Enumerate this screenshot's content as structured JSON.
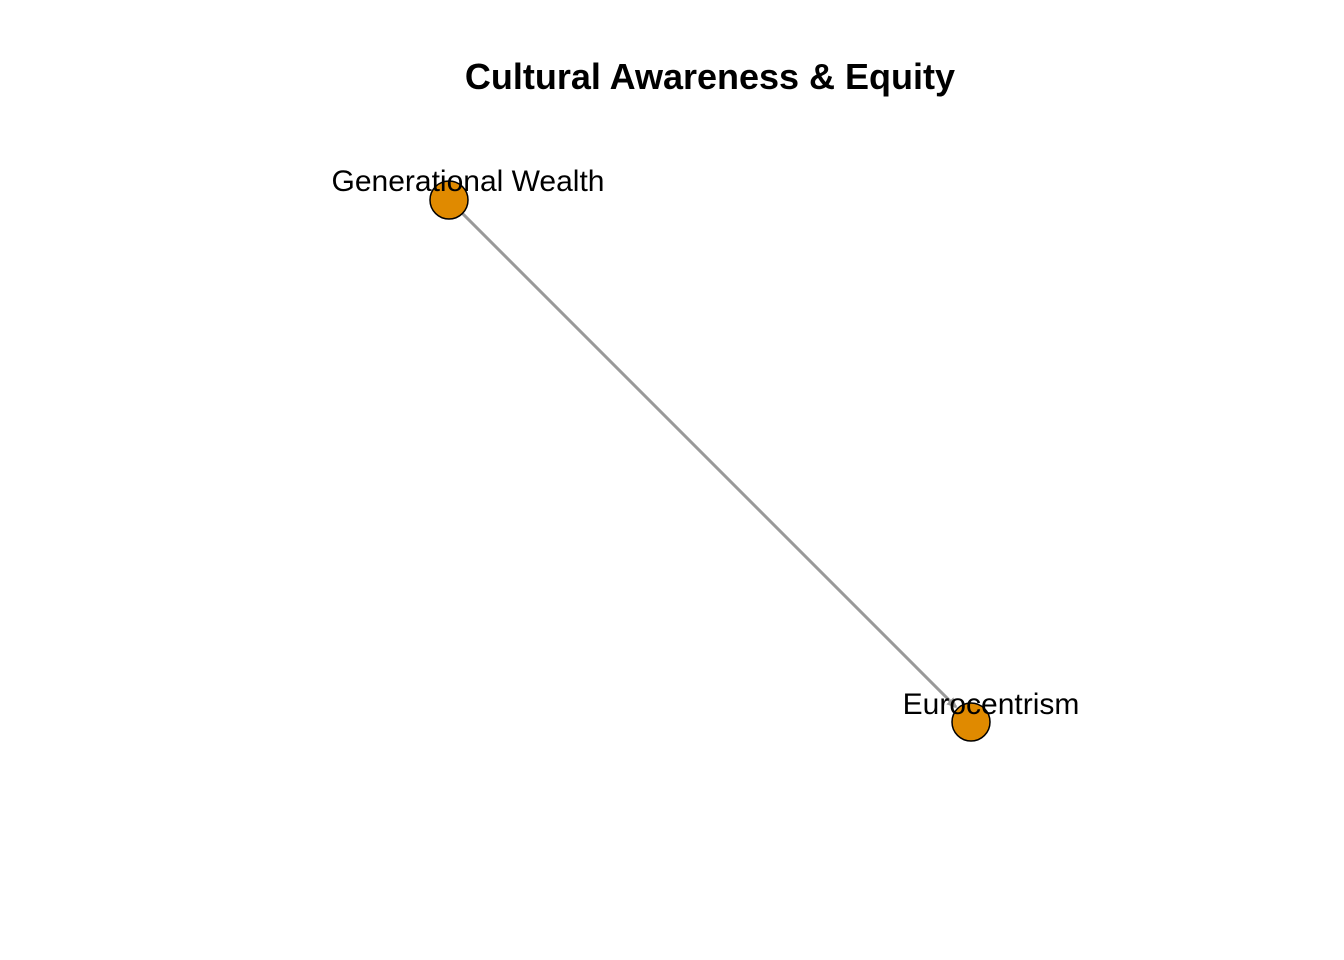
{
  "title": "Cultural Awareness & Equity",
  "colors": {
    "node_fill": "#E08A00",
    "node_stroke": "#000000",
    "edge": "#999999",
    "background": "#ffffff"
  },
  "nodes": [
    {
      "id": "generational-wealth",
      "label": "Generational Wealth"
    },
    {
      "id": "eurocentrism",
      "label": "Eurocentrism"
    }
  ],
  "edges": [
    {
      "from": "generational-wealth",
      "to": "eurocentrism",
      "directed": true
    }
  ]
}
